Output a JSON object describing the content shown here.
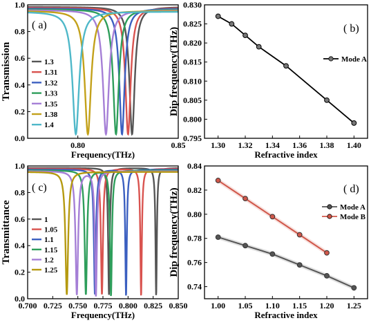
{
  "chart_data": [
    {
      "id": "a",
      "type": "line",
      "panel_label": "( a)",
      "xlabel": "Frequency(THz)",
      "ylabel": "Transmission",
      "xlim": [
        0.775,
        0.85
      ],
      "ylim": [
        0.0,
        1.0
      ],
      "x_ticks": [
        "0.80",
        "0.85"
      ],
      "x_tick_values": [
        0.8,
        0.85
      ],
      "y_ticks": [
        "0.0",
        "0.2",
        "0.4",
        "0.6",
        "0.8",
        "1.0"
      ],
      "y_tick_values": [
        0.0,
        0.2,
        0.4,
        0.6,
        0.8,
        1.0
      ],
      "legend_position": "left",
      "series": [
        {
          "name": "1.3",
          "color": "#555555",
          "dip_x": 0.827,
          "dip_y": 0.03,
          "width": 0.0016
        },
        {
          "name": "1.31",
          "color": "#d9534f",
          "dip_x": 0.825,
          "dip_y": 0.03,
          "width": 0.0016
        },
        {
          "name": "1.32",
          "color": "#3b5fc0",
          "dip_x": 0.822,
          "dip_y": 0.03,
          "width": 0.0016
        },
        {
          "name": "1.33",
          "color": "#2e9e5b",
          "dip_x": 0.819,
          "dip_y": 0.03,
          "width": 0.0017
        },
        {
          "name": "1.35",
          "color": "#a57fd6",
          "dip_x": 0.814,
          "dip_y": 0.03,
          "width": 0.0018
        },
        {
          "name": "1.38",
          "color": "#c3a11a",
          "dip_x": 0.805,
          "dip_y": 0.03,
          "width": 0.0019
        },
        {
          "name": "1.4",
          "color": "#4fb8c9",
          "dip_x": 0.799,
          "dip_y": 0.03,
          "width": 0.002
        }
      ]
    },
    {
      "id": "b",
      "type": "line",
      "panel_label": "( b)",
      "xlabel": "Refractive index",
      "ylabel": "Dip frequency(THz)",
      "xlim": [
        1.29,
        1.41
      ],
      "ylim": [
        0.795,
        0.83
      ],
      "x_ticks": [
        "1.30",
        "1.32",
        "1.34",
        "1.36",
        "1.38",
        "1.40"
      ],
      "x_tick_values": [
        1.3,
        1.32,
        1.34,
        1.36,
        1.38,
        1.4
      ],
      "y_ticks": [
        "0.795",
        "0.800",
        "0.805",
        "0.810",
        "0.815",
        "0.820",
        "0.825",
        "0.830"
      ],
      "y_tick_values": [
        0.795,
        0.8,
        0.805,
        0.81,
        0.815,
        0.82,
        0.825,
        0.83
      ],
      "legend_position": "upper-right",
      "series": [
        {
          "name": "Mode A",
          "color": "#000000",
          "x": [
            1.3,
            1.31,
            1.32,
            1.33,
            1.35,
            1.38,
            1.4
          ],
          "y": [
            0.827,
            0.825,
            0.822,
            0.819,
            0.814,
            0.805,
            0.799
          ]
        }
      ]
    },
    {
      "id": "c",
      "type": "line",
      "panel_label": "( c)",
      "xlabel": "Frequency(THz)",
      "ylabel": "Transmittance",
      "xlim": [
        0.7,
        0.85
      ],
      "ylim": [
        0.0,
        1.0
      ],
      "x_ticks": [
        "0.700",
        "0.725",
        "0.750",
        "0.775",
        "0.800",
        "0.825",
        "0.850"
      ],
      "x_tick_values": [
        0.7,
        0.725,
        0.75,
        0.775,
        0.8,
        0.825,
        0.85
      ],
      "y_ticks": [
        "0.0",
        "0.2",
        "0.4",
        "0.6",
        "0.8",
        "1.0"
      ],
      "y_tick_values": [
        0.0,
        0.2,
        0.4,
        0.6,
        0.8,
        1.0
      ],
      "legend_position": "left",
      "series": [
        {
          "name": "1",
          "color": "#555555",
          "dips": [
            {
              "x": 0.781,
              "y": 0.03,
              "w": 0.001
            },
            {
              "x": 0.828,
              "y": 0.02,
              "w": 0.0008
            }
          ]
        },
        {
          "name": "1.05",
          "color": "#d9534f",
          "dips": [
            {
              "x": 0.774,
              "y": 0.03,
              "w": 0.0012
            },
            {
              "x": 0.813,
              "y": 0.02,
              "w": 0.0009
            }
          ]
        },
        {
          "name": "1.1",
          "color": "#3b5fc0",
          "dips": [
            {
              "x": 0.767,
              "y": 0.03,
              "w": 0.0012
            },
            {
              "x": 0.798,
              "y": 0.02,
              "w": 0.0009
            }
          ]
        },
        {
          "name": "1.15",
          "color": "#2e9e5b",
          "dips": [
            {
              "x": 0.758,
              "y": 0.03,
              "w": 0.0014
            },
            {
              "x": 0.783,
              "y": 0.02,
              "w": 0.0011
            }
          ]
        },
        {
          "name": "1.2",
          "color": "#a57fd6",
          "dips": [
            {
              "x": 0.749,
              "y": 0.03,
              "w": 0.0015
            },
            {
              "x": 0.768,
              "y": 0.02,
              "w": 0.0012
            }
          ]
        },
        {
          "name": "1.25",
          "color": "#b59a10",
          "dips": [
            {
              "x": 0.739,
              "y": 0.03,
              "w": 0.0016
            }
          ]
        }
      ]
    },
    {
      "id": "d",
      "type": "line",
      "panel_label": "( d)",
      "xlabel": "Refractive index",
      "ylabel": "Dip frequency(THz)",
      "xlim": [
        0.975,
        1.275
      ],
      "ylim": [
        0.73,
        0.84
      ],
      "x_ticks": [
        "1.00",
        "1.05",
        "1.10",
        "1.15",
        "1.20",
        "1.25"
      ],
      "x_tick_values": [
        1.0,
        1.05,
        1.1,
        1.15,
        1.2,
        1.25
      ],
      "y_ticks": [
        "0.74",
        "0.76",
        "0.78",
        "0.80",
        "0.82",
        "0.84"
      ],
      "y_tick_values": [
        0.74,
        0.76,
        0.78,
        0.8,
        0.82,
        0.84
      ],
      "legend_position": "right",
      "series": [
        {
          "name": "Mode A",
          "color": "#555555",
          "x": [
            1.0,
            1.05,
            1.1,
            1.15,
            1.2,
            1.25
          ],
          "y": [
            0.781,
            0.774,
            0.767,
            0.758,
            0.749,
            0.739
          ]
        },
        {
          "name": "Mode B",
          "color": "#d0574a",
          "x": [
            1.0,
            1.05,
            1.1,
            1.15,
            1.2
          ],
          "y": [
            0.828,
            0.813,
            0.798,
            0.783,
            0.768
          ]
        }
      ]
    }
  ]
}
